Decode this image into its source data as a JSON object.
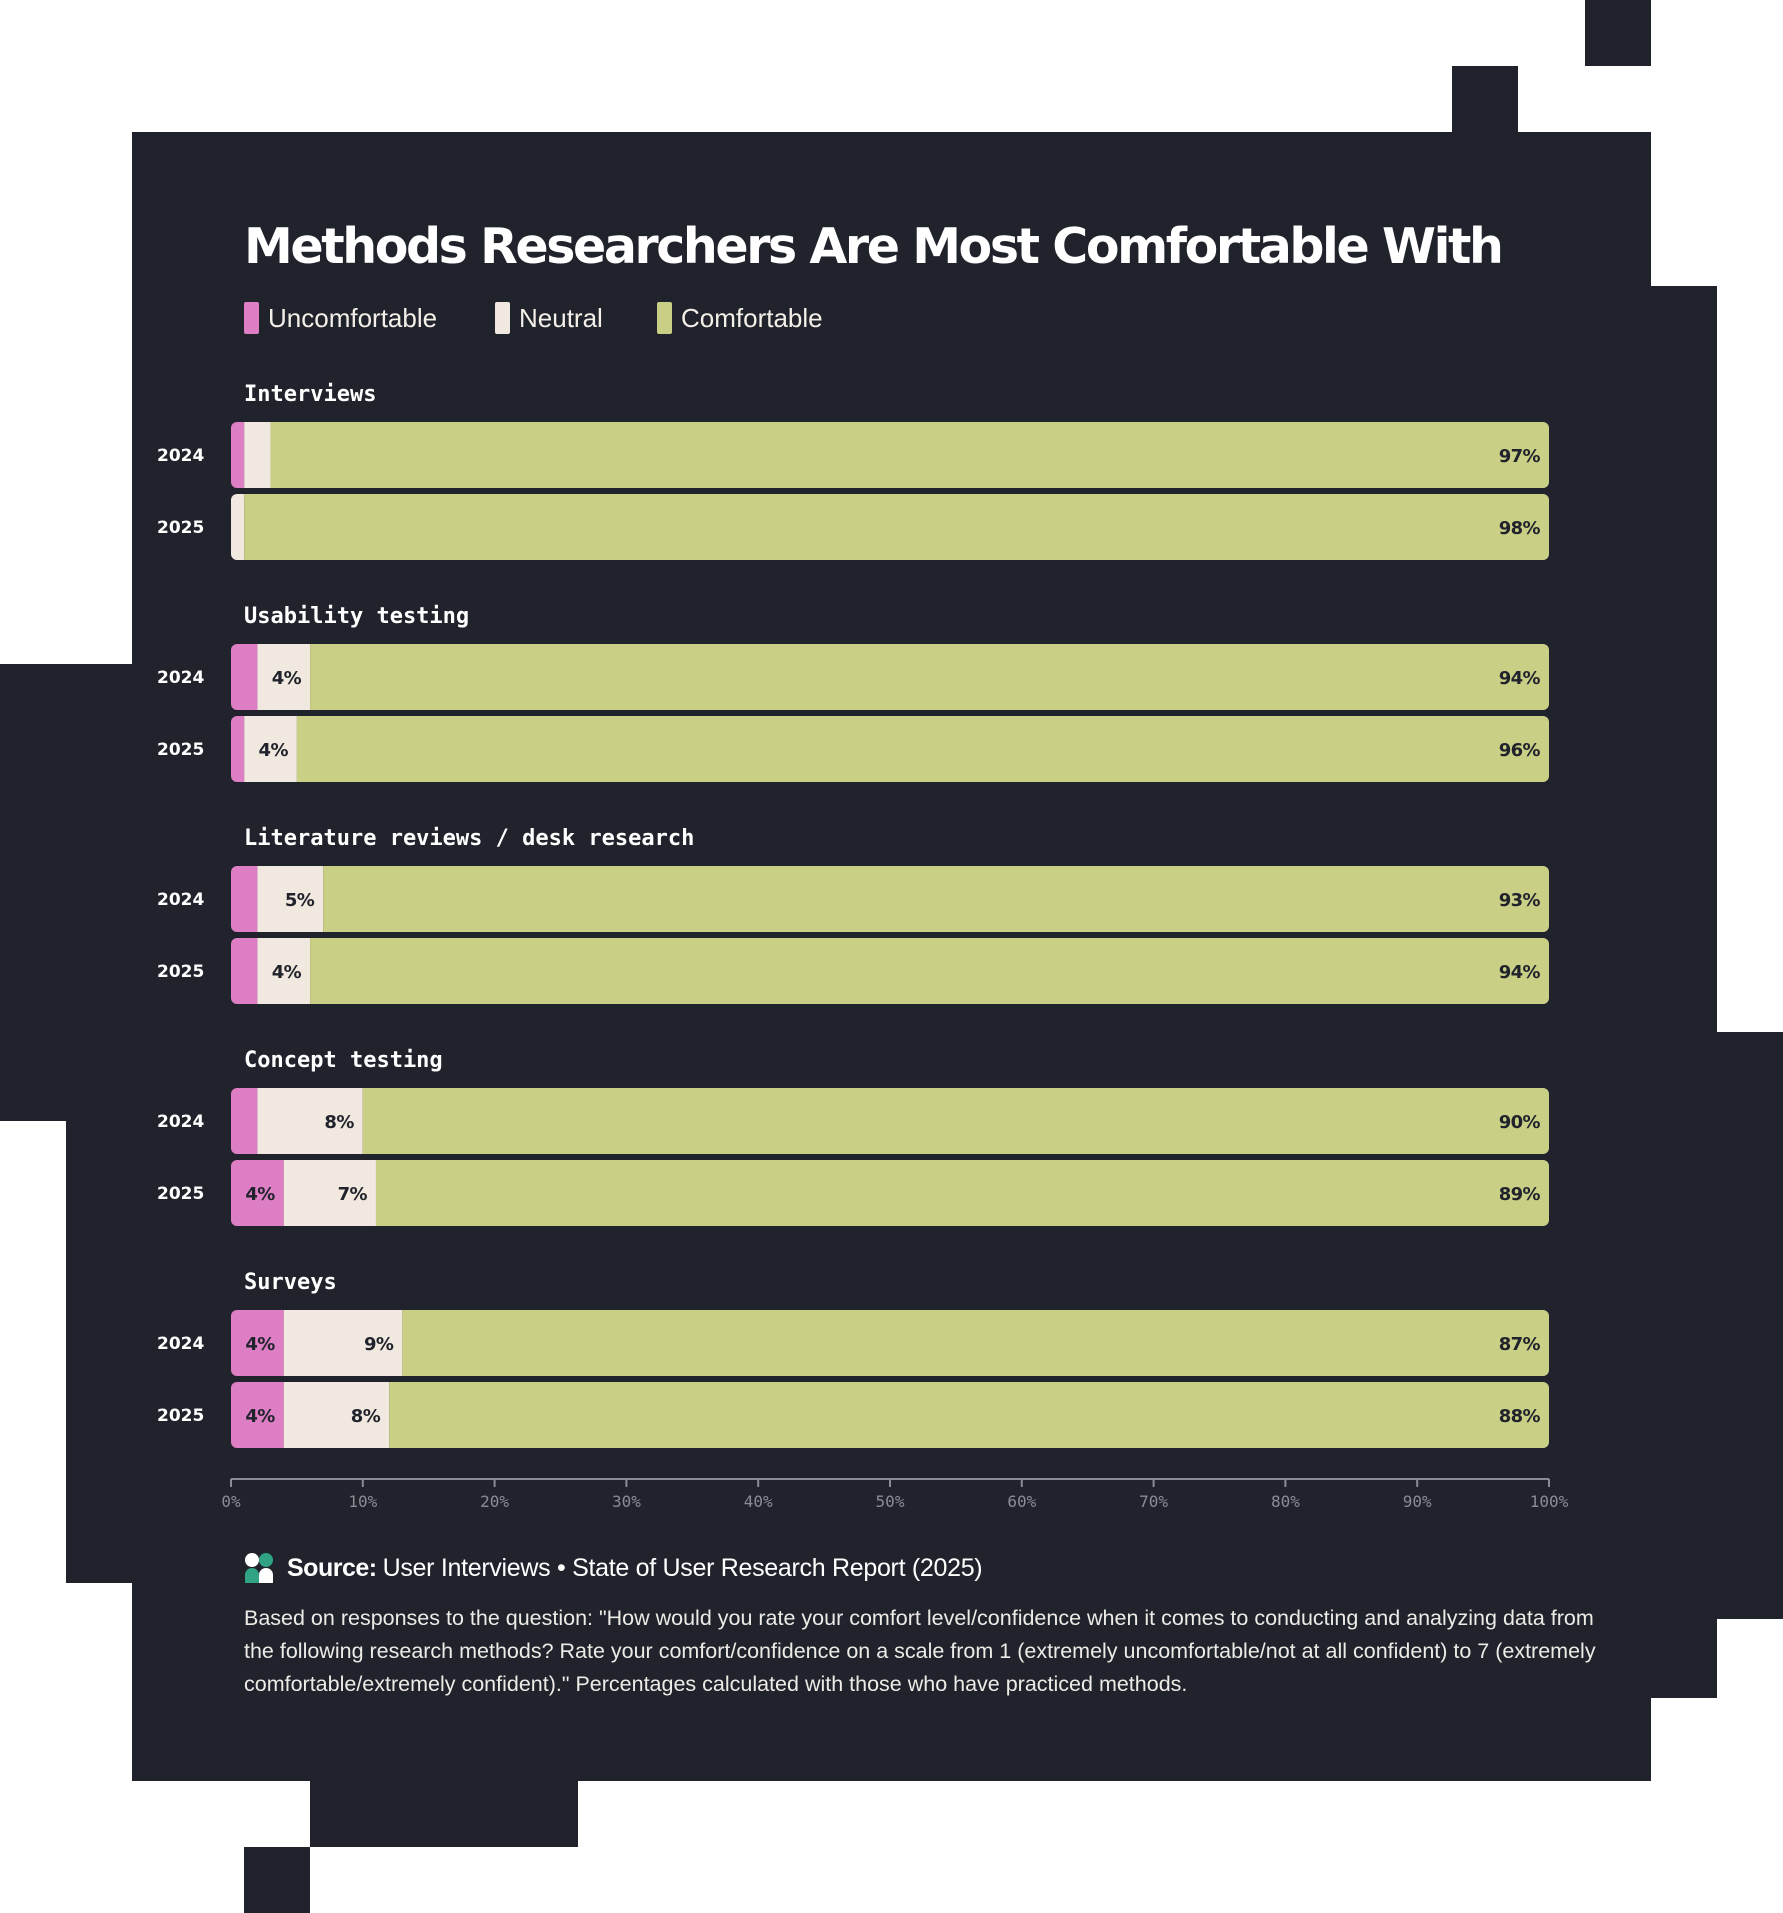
{
  "colors": {
    "uncomfortable": "#de7ec5",
    "neutral": "#f1e8df",
    "comfortable": "#cacf86",
    "background": "#21232c",
    "label_text": "#21232c",
    "category_text": "#ffffff",
    "year_text": "#ffffff",
    "axis": "#8a8c95"
  },
  "chart_data": {
    "type": "bar",
    "orientation": "horizontal",
    "stacked": true,
    "title": "Methods Researchers Are Most Comfortable With",
    "legend": {
      "placement": "top-left",
      "entries": [
        "Uncomfortable",
        "Neutral",
        "Comfortable"
      ]
    },
    "xlim": [
      0,
      100
    ],
    "x_ticks": [
      "0%",
      "10%",
      "20%",
      "30%",
      "40%",
      "50%",
      "60%",
      "70%",
      "80%",
      "90%",
      "100%"
    ],
    "grid": false,
    "groups": [
      {
        "name": "Interviews",
        "rows": [
          {
            "year": "2024",
            "uncomfortable": 1,
            "neutral": 2,
            "comfortable": 97,
            "labels": {
              "uncomfortable": "",
              "neutral": "",
              "comfortable": "97%"
            }
          },
          {
            "year": "2025",
            "uncomfortable": 0,
            "neutral": 1,
            "comfortable": 98,
            "labels": {
              "uncomfortable": "",
              "neutral": "",
              "comfortable": "98%"
            }
          }
        ]
      },
      {
        "name": "Usability testing",
        "rows": [
          {
            "year": "2024",
            "uncomfortable": 2,
            "neutral": 4,
            "comfortable": 94,
            "labels": {
              "uncomfortable": "",
              "neutral": "4%",
              "comfortable": "94%"
            }
          },
          {
            "year": "2025",
            "uncomfortable": 1,
            "neutral": 4,
            "comfortable": 96,
            "labels": {
              "uncomfortable": "",
              "neutral": "4%",
              "comfortable": "96%"
            }
          }
        ]
      },
      {
        "name": "Literature reviews / desk research",
        "rows": [
          {
            "year": "2024",
            "uncomfortable": 2,
            "neutral": 5,
            "comfortable": 93,
            "labels": {
              "uncomfortable": "",
              "neutral": "5%",
              "comfortable": "93%"
            }
          },
          {
            "year": "2025",
            "uncomfortable": 2,
            "neutral": 4,
            "comfortable": 94,
            "labels": {
              "uncomfortable": "",
              "neutral": "4%",
              "comfortable": "94%"
            }
          }
        ]
      },
      {
        "name": "Concept testing",
        "rows": [
          {
            "year": "2024",
            "uncomfortable": 2,
            "neutral": 8,
            "comfortable": 90,
            "labels": {
              "uncomfortable": "",
              "neutral": "8%",
              "comfortable": "90%"
            }
          },
          {
            "year": "2025",
            "uncomfortable": 4,
            "neutral": 7,
            "comfortable": 89,
            "labels": {
              "uncomfortable": "4%",
              "neutral": "7%",
              "comfortable": "89%"
            }
          }
        ]
      },
      {
        "name": "Surveys",
        "rows": [
          {
            "year": "2024",
            "uncomfortable": 4,
            "neutral": 9,
            "comfortable": 87,
            "labels": {
              "uncomfortable": "4%",
              "neutral": "9%",
              "comfortable": "87%"
            }
          },
          {
            "year": "2025",
            "uncomfortable": 4,
            "neutral": 8,
            "comfortable": 88,
            "labels": {
              "uncomfortable": "4%",
              "neutral": "8%",
              "comfortable": "88%"
            }
          }
        ]
      }
    ]
  },
  "legend": {
    "uncomfortable": "Uncomfortable",
    "neutral": "Neutral",
    "comfortable": "Comfortable"
  },
  "source": {
    "prefix": "Source:",
    "text": "User Interviews • State of User Research Report (2025)",
    "logo": "user-interviews-logo"
  },
  "note": "Based on responses to the question: \"How would you rate your comfort level/confidence when it comes to conducting and analyzing data from the following research methods? Rate your comfort/confidence on a scale from 1 (extremely uncomfortable/not at all confident) to 7 (extremely comfortable/extremely confident).\" Percentages calculated with those who have practiced methods."
}
